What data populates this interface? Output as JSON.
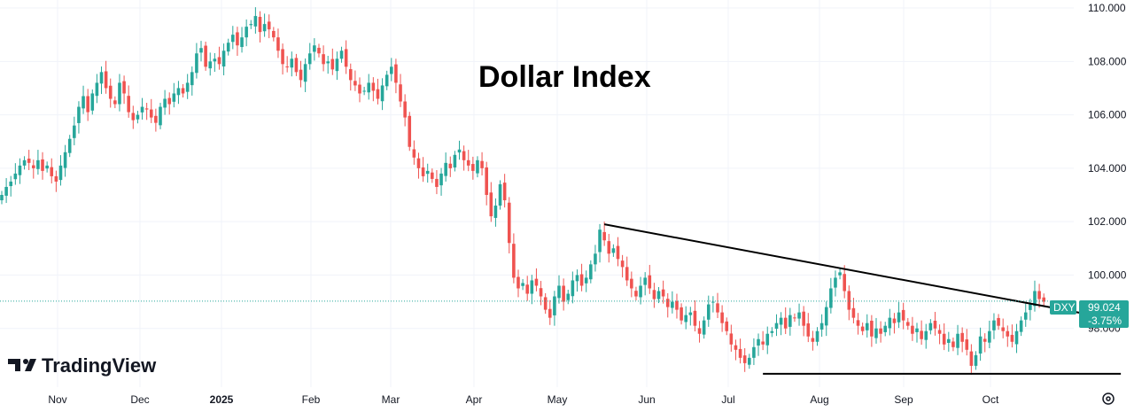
{
  "chart_data": {
    "type": "candlestick",
    "title": "Dollar Index",
    "symbol": "DXY",
    "last_price": "99.024",
    "change": "-3.75%",
    "y_ticks": [
      "110.000",
      "108.000",
      "106.000",
      "104.000",
      "102.000",
      "100.000",
      "98.000"
    ],
    "y_tick_values": [
      110,
      108,
      106,
      104,
      102,
      100,
      98
    ],
    "ylim": [
      95.8,
      110.3
    ],
    "x_labels": [
      "Nov",
      "Dec",
      "2025",
      "Feb",
      "Mar",
      "Apr",
      "May",
      "Jun",
      "Jul",
      "Aug",
      "Sep",
      "Oct"
    ],
    "x_label_bold": "2025",
    "grid": true,
    "colors": {
      "up": "#26a69a",
      "down": "#ef5350",
      "line": "#000000",
      "badge": "#26a69a"
    },
    "series": [
      {
        "name": "DXY",
        "closes": [
          103.0,
          103.3,
          103.5,
          103.8,
          104.1,
          104.3,
          104.2,
          104.0,
          104.3,
          103.9,
          104.1,
          103.7,
          103.5,
          104.1,
          104.6,
          105.1,
          105.6,
          106.3,
          106.7,
          106.1,
          106.8,
          107.2,
          107.6,
          107.0,
          106.6,
          106.4,
          107.2,
          106.8,
          106.1,
          105.8,
          106.0,
          106.3,
          106.2,
          105.9,
          105.7,
          106.3,
          106.6,
          106.4,
          106.8,
          107.0,
          106.8,
          107.2,
          107.6,
          108.3,
          108.5,
          107.8,
          108.0,
          108.1,
          107.9,
          108.4,
          108.7,
          109.0,
          108.6,
          108.9,
          109.3,
          109.4,
          109.7,
          109.1,
          109.4,
          109.2,
          108.9,
          108.4,
          107.9,
          107.8,
          108.1,
          107.6,
          107.3,
          107.9,
          108.3,
          108.6,
          108.3,
          107.9,
          108.0,
          107.7,
          108.1,
          108.4,
          107.8,
          107.3,
          107.1,
          106.8,
          106.9,
          107.2,
          106.9,
          106.6,
          107.1,
          107.5,
          107.8,
          107.2,
          106.5,
          105.9,
          104.8,
          104.4,
          104.0,
          103.7,
          103.9,
          103.6,
          103.3,
          103.8,
          104.2,
          104.0,
          104.5,
          104.7,
          104.3,
          104.1,
          103.9,
          104.3,
          104.0,
          103.0,
          102.2,
          102.6,
          103.4,
          102.8,
          101.2,
          99.9,
          99.5,
          99.7,
          99.3,
          99.8,
          99.6,
          99.2,
          98.7,
          98.4,
          99.2,
          99.6,
          99.0,
          99.3,
          99.8,
          100.0,
          99.6,
          99.9,
          100.4,
          100.8,
          101.7,
          101.3,
          100.8,
          101.0,
          100.6,
          100.3,
          99.8,
          99.5,
          99.2,
          99.6,
          99.9,
          99.5,
          99.1,
          99.4,
          99.2,
          98.8,
          99.0,
          98.7,
          98.3,
          98.5,
          98.6,
          98.1,
          97.8,
          98.3,
          98.9,
          99.0,
          98.6,
          98.2,
          97.9,
          97.4,
          97.2,
          96.9,
          96.7,
          96.9,
          97.3,
          97.6,
          97.4,
          97.8,
          97.9,
          98.2,
          98.4,
          98.0,
          98.5,
          98.4,
          98.6,
          98.1,
          97.7,
          97.5,
          97.9,
          98.2,
          98.8,
          99.5,
          99.9,
          100.1,
          99.4,
          98.7,
          98.4,
          98.1,
          97.9,
          98.2,
          97.7,
          98.0,
          97.8,
          98.1,
          98.4,
          98.2,
          98.6,
          98.3,
          98.1,
          97.8,
          98.0,
          97.6,
          97.9,
          98.2,
          98.0,
          97.8,
          97.4,
          97.6,
          97.3,
          97.8,
          97.5,
          97.2,
          96.6,
          97.0,
          97.7,
          97.5,
          97.9,
          98.3,
          98.1,
          97.9,
          97.7,
          97.5,
          97.9,
          98.3,
          98.6,
          98.9,
          99.4,
          99.1,
          99.0
        ]
      }
    ],
    "trendlines": [
      {
        "from": {
          "index": 133,
          "value": 101.9
        },
        "to": {
          "index": 247,
          "value": 98.3
        }
      },
      {
        "from": {
          "index": 168,
          "value": 96.3
        },
        "to": {
          "index": 247,
          "value": 96.3
        }
      }
    ],
    "branding": "TradingView"
  }
}
